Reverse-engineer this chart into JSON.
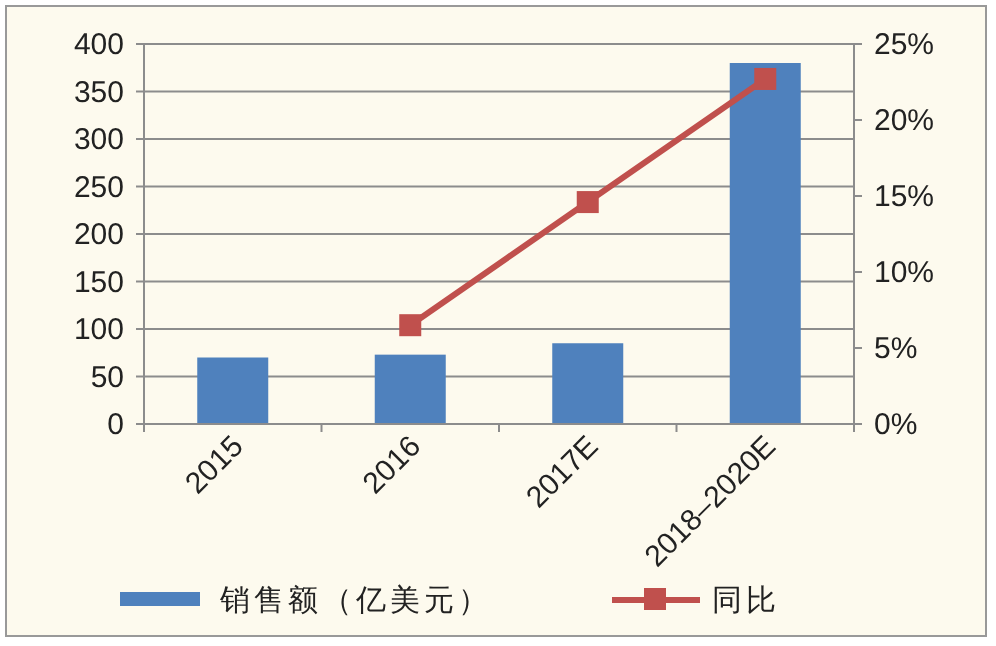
{
  "chart_data": {
    "type": "bar",
    "categories": [
      "2015",
      "2016",
      "2017E",
      "2018–2020E"
    ],
    "series": [
      {
        "name": "销售额（亿美元）",
        "color": "#4f81bd",
        "values": [
          70,
          73,
          85,
          380
        ]
      },
      {
        "name": "同比",
        "type": "line",
        "axis": "y2",
        "color": "#c0504d",
        "values": [
          null,
          6.5,
          14.6,
          22.7
        ]
      }
    ],
    "ylim": [
      0,
      400
    ],
    "yticks": [
      0,
      50,
      100,
      150,
      200,
      250,
      300,
      350,
      400
    ],
    "y2lim": [
      0,
      25
    ],
    "y2ticks": [
      {
        "value": 0,
        "label": "0%"
      },
      {
        "value": 5,
        "label": "5%"
      },
      {
        "value": 10,
        "label": "10%"
      },
      {
        "value": 15,
        "label": "15%"
      },
      {
        "value": 20,
        "label": "20%"
      },
      {
        "value": 25,
        "label": "25%"
      }
    ],
    "grid": "y",
    "legend": "bottom",
    "marker": "square",
    "line_style": "solid"
  }
}
